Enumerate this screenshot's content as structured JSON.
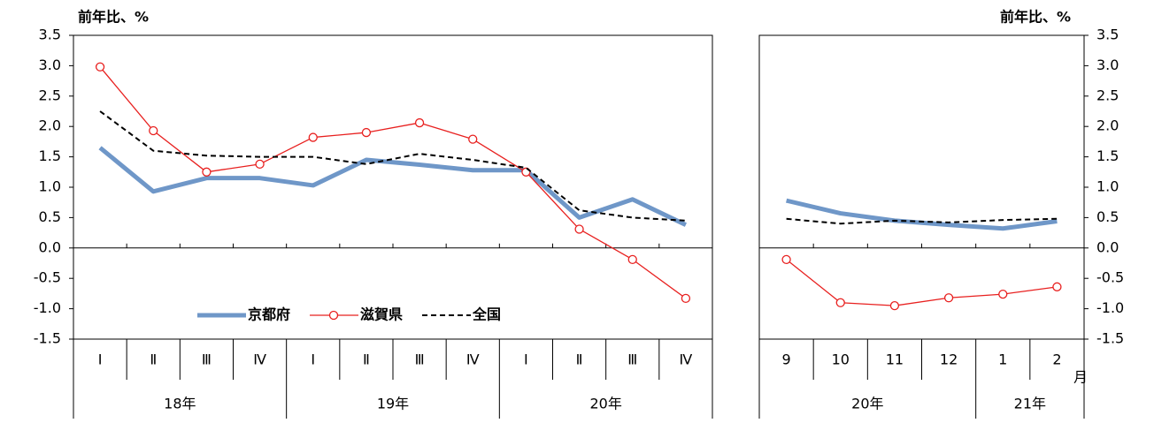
{
  "chart_data": [
    {
      "type": "line",
      "y_label": "前年比、%",
      "y_axis_side": "left",
      "categories": [
        "Ⅰ",
        "Ⅱ",
        "Ⅲ",
        "Ⅳ",
        "Ⅰ",
        "Ⅱ",
        "Ⅲ",
        "Ⅳ",
        "Ⅰ",
        "Ⅱ",
        "Ⅲ",
        "Ⅳ"
      ],
      "groups": [
        "18年",
        "18年",
        "18年",
        "18年",
        "19年",
        "19年",
        "19年",
        "19年",
        "20年",
        "20年",
        "20年",
        "20年"
      ],
      "ylim": [
        -1.5,
        3.5
      ],
      "yticks": [
        {
          "value": -1.5,
          "label": "-1.5"
        },
        {
          "value": -1.0,
          "label": "-1.0"
        },
        {
          "value": -0.5,
          "label": "-0.5"
        },
        {
          "value": 0,
          "label": "0.0"
        },
        {
          "value": 0.5,
          "label": "0.5"
        },
        {
          "value": 1.0,
          "label": "1.0"
        },
        {
          "value": 1.5,
          "label": "1.5"
        },
        {
          "value": 2.0,
          "label": "2.0"
        },
        {
          "value": 2.5,
          "label": "2.5"
        },
        {
          "value": 3.0,
          "label": "3.0"
        },
        {
          "value": 3.5,
          "label": "3.5"
        }
      ],
      "legend": "bottom-center",
      "series": [
        {
          "name": "京都府",
          "color": "#6f97c8",
          "style": "solid",
          "width": 5,
          "marker": "none",
          "values": [
            1.65,
            0.93,
            1.15,
            1.15,
            1.03,
            1.45,
            1.37,
            1.28,
            1.28,
            0.5,
            0.8,
            0.38
          ]
        },
        {
          "name": "滋賀県",
          "color": "#e8201f",
          "style": "solid",
          "width": 1.3,
          "marker": "circle",
          "values": [
            2.98,
            1.93,
            1.25,
            1.38,
            1.82,
            1.9,
            2.06,
            1.79,
            1.25,
            0.31,
            -0.19,
            -0.83
          ]
        },
        {
          "name": "全国",
          "color": "#000000",
          "style": "dash",
          "width": 2,
          "marker": "none",
          "values": [
            2.25,
            1.6,
            1.52,
            1.5,
            1.5,
            1.38,
            1.55,
            1.45,
            1.32,
            0.62,
            0.5,
            0.45
          ]
        }
      ]
    },
    {
      "type": "line",
      "y_label": "前年比、%",
      "y_axis_side": "right",
      "x_unit": "月",
      "categories": [
        "9",
        "10",
        "11",
        "12",
        "1",
        "2"
      ],
      "groups": [
        "20年",
        "20年",
        "20年",
        "20年",
        "21年",
        "21年"
      ],
      "ylim": [
        -1.5,
        3.5
      ],
      "yticks": [
        {
          "value": -1.5,
          "label": "-1.5"
        },
        {
          "value": -1.0,
          "label": "-1.0"
        },
        {
          "value": -0.5,
          "label": "-0.5"
        },
        {
          "value": 0,
          "label": "0.0"
        },
        {
          "value": 0.5,
          "label": "0.5"
        },
        {
          "value": 1.0,
          "label": "1.0"
        },
        {
          "value": 1.5,
          "label": "1.5"
        },
        {
          "value": 2.0,
          "label": "2.0"
        },
        {
          "value": 2.5,
          "label": "2.5"
        },
        {
          "value": 3.0,
          "label": "3.0"
        },
        {
          "value": 3.5,
          "label": "3.5"
        }
      ],
      "series": [
        {
          "color": "#6f97c8",
          "style": "solid",
          "width": 5,
          "marker": "none",
          "values": [
            0.78,
            0.57,
            0.45,
            0.38,
            0.32,
            0.44
          ]
        },
        {
          "color": "#e8201f",
          "style": "solid",
          "width": 1.3,
          "marker": "circle",
          "values": [
            -0.19,
            -0.9,
            -0.95,
            -0.82,
            -0.76,
            -0.64
          ]
        },
        {
          "color": "#000000",
          "style": "dash",
          "width": 2,
          "marker": "none",
          "values": [
            0.48,
            0.4,
            0.45,
            0.42,
            0.46,
            0.48
          ]
        }
      ]
    }
  ]
}
